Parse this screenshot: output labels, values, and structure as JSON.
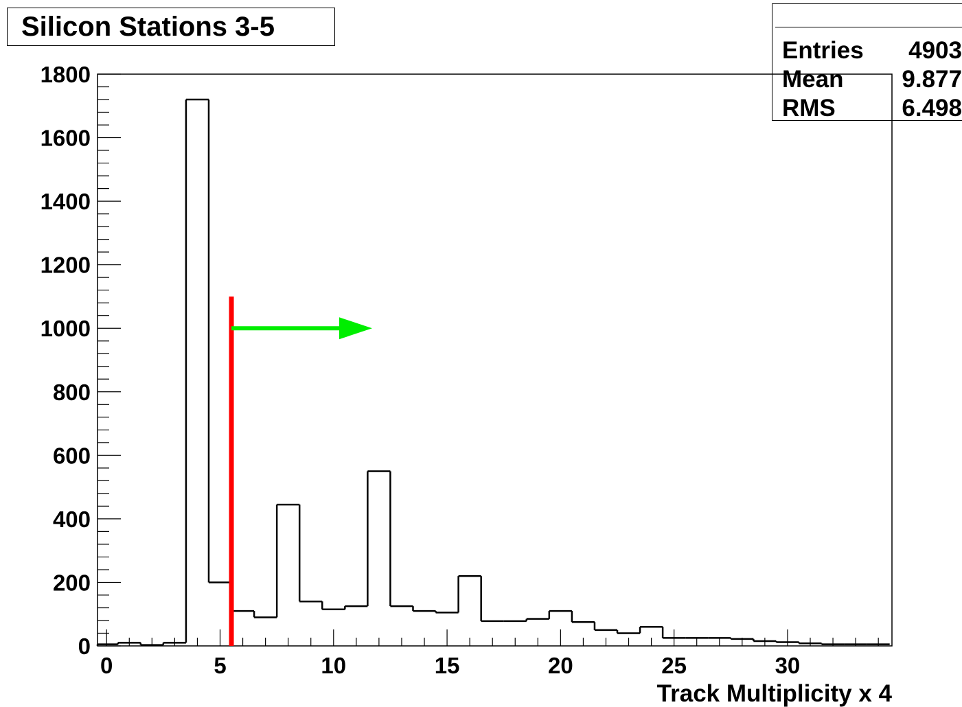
{
  "title": "Silicon Stations 3-5",
  "stats": {
    "name": "",
    "rows": [
      {
        "label": "Entries",
        "value": "4903"
      },
      {
        "label": "Mean",
        "value": "9.877"
      },
      {
        "label": "RMS",
        "value": "6.498"
      }
    ]
  },
  "colors": {
    "histogram": "#000000",
    "cut_line": "#ff0000",
    "arrow": "#00ee00"
  },
  "chart_data": {
    "type": "histogram",
    "title": "Silicon Stations 3-5",
    "xlabel": "Track Multiplicity x 4",
    "ylabel": "",
    "xlim": [
      -0.4,
      34.6
    ],
    "ylim": [
      0,
      1800
    ],
    "bin_width": 1,
    "bin_low_edges": [
      -0.5,
      0.5,
      1.5,
      2.5,
      3.5,
      4.5,
      5.5,
      6.5,
      7.5,
      8.5,
      9.5,
      10.5,
      11.5,
      12.5,
      13.5,
      14.5,
      15.5,
      16.5,
      17.5,
      18.5,
      19.5,
      20.5,
      21.5,
      22.5,
      23.5,
      24.5,
      25.5,
      26.5,
      27.5,
      28.5,
      29.5,
      30.5,
      31.5,
      32.5,
      33.5
    ],
    "values": [
      5,
      10,
      3,
      10,
      1720,
      200,
      110,
      90,
      445,
      140,
      115,
      125,
      550,
      125,
      110,
      105,
      220,
      78,
      78,
      85,
      110,
      75,
      50,
      40,
      60,
      25,
      25,
      25,
      22,
      15,
      12,
      8,
      5,
      5,
      5
    ],
    "x_ticks": [
      "0",
      "5",
      "10",
      "15",
      "20",
      "25",
      "30"
    ],
    "y_ticks": [
      "0",
      "200",
      "400",
      "600",
      "800",
      "1000",
      "1200",
      "1400",
      "1600",
      "1800"
    ],
    "cut_line": {
      "x": 5.5,
      "y_top": 1100
    },
    "arrow": {
      "x_from": 5.5,
      "x_to": 11.7,
      "y": 1000
    },
    "legend": "top-right stats box"
  }
}
